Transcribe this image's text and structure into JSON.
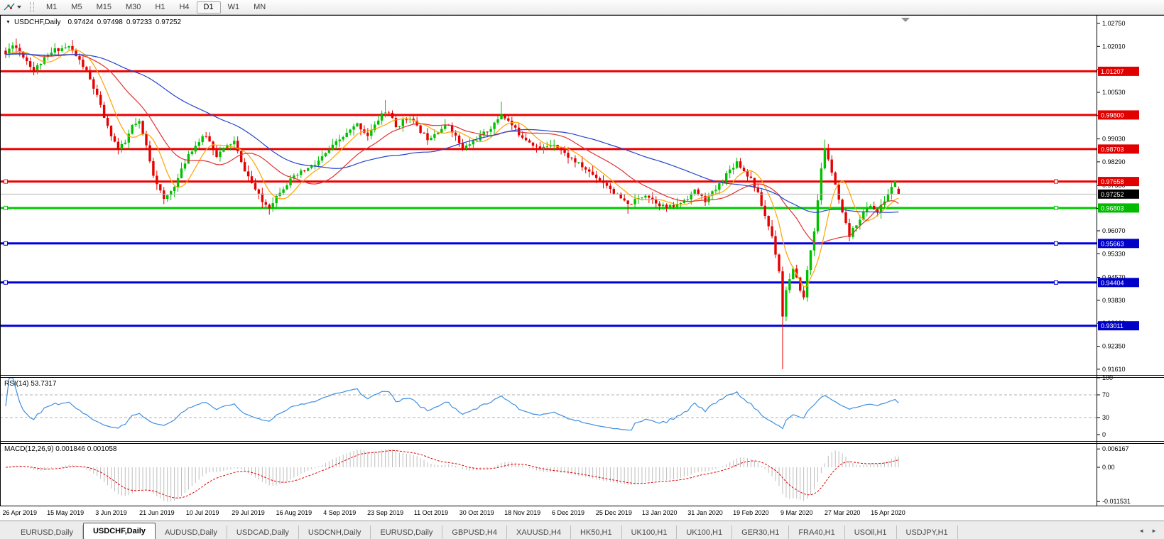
{
  "toolbar": {
    "periods": [
      "M1",
      "M5",
      "M15",
      "M30",
      "H1",
      "H4",
      "D1",
      "W1",
      "MN"
    ],
    "active_period": "D1"
  },
  "window": {
    "collapse_marker": "▼",
    "symbol": "USDCHF,Daily",
    "open": "0.97424",
    "high": "0.97498",
    "low": "0.97233",
    "close": "0.97252"
  },
  "tabs": {
    "items": [
      "EURUSD,Daily",
      "USDCHF,Daily",
      "AUDUSD,Daily",
      "USDCAD,Daily",
      "USDCNH,Daily",
      "EURUSD,Daily",
      "GBPUSD,H4",
      "XAUUSD,H4",
      "HK50,H1",
      "UK100,H1",
      "UK100,H1",
      "GER30,H1",
      "FRA40,H1",
      "USOil,H1",
      "USDJPY,H1"
    ],
    "active_index": 1,
    "nav_prev": "◄",
    "nav_next": "►"
  },
  "chart_data": [
    {
      "type": "candlestick",
      "title": "USDCHF,Daily",
      "ohlc_display": {
        "open": 0.97424,
        "high": 0.97498,
        "low": 0.97233,
        "close": 0.97252
      },
      "x_tick_labels": [
        "26 Apr 2019",
        "15 May 2019",
        "3 Jun 2019",
        "21 Jun 2019",
        "10 Jul 2019",
        "29 Jul 2019",
        "16 Aug 2019",
        "4 Sep 2019",
        "23 Sep 2019",
        "11 Oct 2019",
        "30 Oct 2019",
        "18 Nov 2019",
        "6 Dec 2019",
        "25 Dec 2019",
        "13 Jan 2020",
        "31 Jan 2020",
        "19 Feb 2020",
        "9 Mar 2020",
        "27 Mar 2020",
        "15 Apr 2020"
      ],
      "bars_per_tick": 13,
      "first_tick_bar": 4,
      "num_bars": 255,
      "y_axis_ticks": [
        "1.02750",
        "1.02010",
        "1.01270",
        "1.00530",
        "0.99780",
        "0.99030",
        "0.98290",
        "0.97530",
        "0.96790",
        "0.96070",
        "0.95330",
        "0.94570",
        "0.93830",
        "0.93090",
        "0.92350",
        "0.91610"
      ],
      "price_range": {
        "top": 1.0285,
        "bottom": 0.9152
      },
      "close_keypoints": [
        [
          0,
          1.0175
        ],
        [
          2,
          1.021
        ],
        [
          5,
          1.017
        ],
        [
          8,
          1.0125
        ],
        [
          11,
          1.016
        ],
        [
          14,
          1.019
        ],
        [
          18,
          1.02
        ],
        [
          21,
          1.0155
        ],
        [
          23,
          1.012
        ],
        [
          26,
          1.004
        ],
        [
          29,
          0.994
        ],
        [
          32,
          0.987
        ],
        [
          34,
          0.989
        ],
        [
          36,
          0.9945
        ],
        [
          38,
          0.9955
        ],
        [
          40,
          0.988
        ],
        [
          42,
          0.979
        ],
        [
          45,
          0.9705
        ],
        [
          47,
          0.9735
        ],
        [
          49,
          0.9775
        ],
        [
          52,
          0.9855
        ],
        [
          55,
          0.9895
        ],
        [
          57,
          0.9915
        ],
        [
          60,
          0.985
        ],
        [
          63,
          0.988
        ],
        [
          65,
          0.9895
        ],
        [
          67,
          0.9825
        ],
        [
          70,
          0.976
        ],
        [
          73,
          0.97
        ],
        [
          75,
          0.9685
        ],
        [
          78,
          0.9735
        ],
        [
          81,
          0.977
        ],
        [
          84,
          0.9795
        ],
        [
          88,
          0.982
        ],
        [
          91,
          0.9855
        ],
        [
          94,
          0.989
        ],
        [
          97,
          0.992
        ],
        [
          100,
          0.995
        ],
        [
          103,
          0.9915
        ],
        [
          105,
          0.9945
        ],
        [
          107,
          0.9985
        ],
        [
          109,
          0.999
        ],
        [
          111,
          0.994
        ],
        [
          113,
          0.996
        ],
        [
          115,
          0.9975
        ],
        [
          117,
          0.994
        ],
        [
          120,
          0.9905
        ],
        [
          123,
          0.993
        ],
        [
          126,
          0.995
        ],
        [
          128,
          0.991
        ],
        [
          130,
          0.987
        ],
        [
          133,
          0.9895
        ],
        [
          136,
          0.992
        ],
        [
          139,
          0.995
        ],
        [
          141,
          0.9985
        ],
        [
          143,
          0.996
        ],
        [
          146,
          0.992
        ],
        [
          149,
          0.9895
        ],
        [
          152,
          0.987
        ],
        [
          156,
          0.989
        ],
        [
          159,
          0.9855
        ],
        [
          162,
          0.983
        ],
        [
          165,
          0.9805
        ],
        [
          168,
          0.978
        ],
        [
          171,
          0.9755
        ],
        [
          174,
          0.972
        ],
        [
          177,
          0.969
        ],
        [
          180,
          0.971
        ],
        [
          182,
          0.9725
        ],
        [
          185,
          0.97
        ],
        [
          188,
          0.968
        ],
        [
          191,
          0.969
        ],
        [
          194,
          0.9715
        ],
        [
          196,
          0.9735
        ],
        [
          199,
          0.9705
        ],
        [
          202,
          0.974
        ],
        [
          205,
          0.979
        ],
        [
          208,
          0.983
        ],
        [
          210,
          0.98
        ],
        [
          212,
          0.9775
        ],
        [
          214,
          0.9725
        ],
        [
          216,
          0.9655
        ],
        [
          218,
          0.959
        ],
        [
          220,
          0.948
        ],
        [
          221,
          0.933
        ],
        [
          222,
          0.942
        ],
        [
          224,
          0.948
        ],
        [
          226,
          0.942
        ],
        [
          227,
          0.939
        ],
        [
          228,
          0.948
        ],
        [
          230,
          0.961
        ],
        [
          231,
          0.97
        ],
        [
          232,
          0.981
        ],
        [
          233,
          0.987
        ],
        [
          234,
          0.984
        ],
        [
          236,
          0.975
        ],
        [
          238,
          0.966
        ],
        [
          240,
          0.959
        ],
        [
          242,
          0.963
        ],
        [
          244,
          0.9665
        ],
        [
          246,
          0.969
        ],
        [
          248,
          0.9665
        ],
        [
          250,
          0.9705
        ],
        [
          252,
          0.9745
        ],
        [
          253,
          0.977
        ],
        [
          254,
          0.9725
        ]
      ],
      "extreme_overrides": [
        {
          "i": 3,
          "high": 1.0226
        },
        {
          "i": 45,
          "low": 0.9693
        },
        {
          "i": 75,
          "low": 0.9659
        },
        {
          "i": 108,
          "high": 1.0028
        },
        {
          "i": 141,
          "high": 1.0023
        },
        {
          "i": 177,
          "low": 0.9662
        },
        {
          "i": 221,
          "low": 0.9161
        },
        {
          "i": 233,
          "high": 0.9901
        },
        {
          "i": 254,
          "open": 0.97424,
          "high": 0.97498,
          "low": 0.97233,
          "close": 0.97252
        }
      ],
      "moving_averages": [
        {
          "period": 8,
          "color": "#FFA200"
        },
        {
          "period": 21,
          "color": "#E03232"
        },
        {
          "period": 55,
          "color": "#2344CB"
        }
      ],
      "horizontal_lines": [
        {
          "price": 1.01207,
          "label": "1.01207",
          "color": "#EE0000",
          "badge_bg": "#E00000",
          "handles": false
        },
        {
          "price": 0.998,
          "label": "0.99800",
          "color": "#EE0000",
          "badge_bg": "#E00000",
          "handles": false
        },
        {
          "price": 0.98703,
          "label": "0.98703",
          "color": "#EE0000",
          "badge_bg": "#E00000",
          "handles": false
        },
        {
          "price": 0.97658,
          "label": "0.97658",
          "color": "#EE0000",
          "badge_bg": "#E00000",
          "handles": true
        },
        {
          "price": 0.96803,
          "label": "0.96803",
          "color": "#00CC00",
          "badge_bg": "#00BB00",
          "handles": true
        },
        {
          "price": 0.95663,
          "label": "0.95663",
          "color": "#0000DD",
          "badge_bg": "#0000C8",
          "handles": true
        },
        {
          "price": 0.94404,
          "label": "0.94404",
          "color": "#0000DD",
          "badge_bg": "#0000C8",
          "handles": true
        },
        {
          "price": 0.93011,
          "label": "0.93011",
          "color": "#0000DD",
          "badge_bg": "#0000C8",
          "handles": false
        }
      ],
      "current_price": {
        "value": 0.97252,
        "label": "0.97252",
        "line_color": "#B8B8B8",
        "badge_bg": "#000000"
      },
      "candle_colors": {
        "bull": "#00C000",
        "bear": "#E60000"
      }
    },
    {
      "type": "line",
      "indicator": "RSI",
      "label": "RSI(14) 53.7317",
      "period": 14,
      "current_value": 53.7317,
      "axis_ticks": [
        "100",
        "70",
        "30",
        "0"
      ],
      "axis_tick_values": [
        100,
        70,
        30,
        0
      ],
      "dashed_levels": [
        70,
        30
      ],
      "line_color": "#3F8FE0"
    },
    {
      "type": "macd",
      "indicator": "MACD",
      "label": "MACD(12,26,9) 0.001846 0.001058",
      "fast": 12,
      "slow": 26,
      "signal": 9,
      "main_value": 0.001846,
      "signal_value": 0.001058,
      "axis_ticks": [
        "0.006167",
        "0.00",
        "-0.011531"
      ],
      "axis_tick_values": [
        0.006167,
        0.0,
        -0.011531
      ],
      "histogram_color": "#BDBDBD",
      "signal_color": "#E00000"
    }
  ]
}
